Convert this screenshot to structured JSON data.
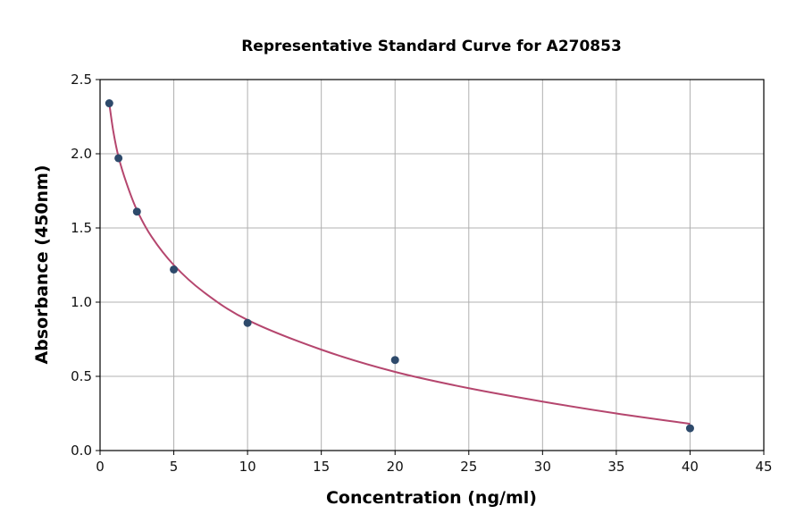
{
  "chart_data": {
    "type": "scatter",
    "title": "Representative Standard Curve for A270853",
    "xlabel": "Concentration (ng/ml)",
    "ylabel": "Absorbance (450nm)",
    "xlim": [
      0,
      45
    ],
    "ylim": [
      0,
      2.5
    ],
    "xticks": [
      "0",
      "5",
      "10",
      "15",
      "20",
      "25",
      "30",
      "35",
      "40",
      "45"
    ],
    "yticks": [
      "0.0",
      "0.5",
      "1.0",
      "1.5",
      "2.0",
      "2.5"
    ],
    "grid": true,
    "points": {
      "x": [
        0.625,
        1.25,
        2.5,
        5,
        10,
        20,
        40
      ],
      "y": [
        2.34,
        1.97,
        1.61,
        1.22,
        0.86,
        0.61,
        0.15
      ]
    },
    "fit_curve": {
      "x": [
        0.625,
        0.9,
        1.25,
        1.8,
        2.5,
        3.5,
        5,
        7,
        10,
        15,
        20,
        25,
        30,
        35,
        40
      ],
      "y": [
        2.34,
        2.15,
        1.98,
        1.8,
        1.62,
        1.44,
        1.25,
        1.07,
        0.88,
        0.68,
        0.53,
        0.42,
        0.33,
        0.25,
        0.18
      ]
    },
    "colors": {
      "points": "#2e4a6b",
      "curve": "#b5466e",
      "grid": "#b0b0b0"
    }
  }
}
